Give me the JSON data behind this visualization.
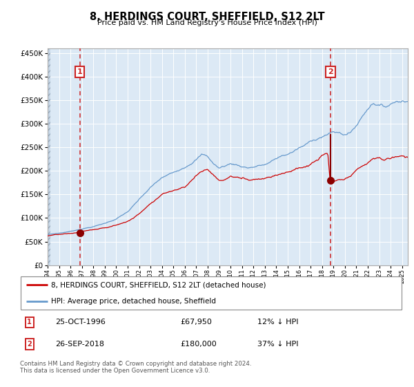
{
  "title": "8, HERDINGS COURT, SHEFFIELD, S12 2LT",
  "subtitle": "Price paid vs. HM Land Registry's House Price Index (HPI)",
  "bg_color": "#dce9f5",
  "grid_color": "#ffffff",
  "red_line_color": "#cc0000",
  "blue_line_color": "#6699cc",
  "marker_color": "#8b0000",
  "vline_color": "#cc2222",
  "ylim": [
    0,
    460000
  ],
  "yticks": [
    0,
    50000,
    100000,
    150000,
    200000,
    250000,
    300000,
    350000,
    400000,
    450000
  ],
  "ytick_labels": [
    "£0",
    "£50K",
    "£100K",
    "£150K",
    "£200K",
    "£250K",
    "£300K",
    "£350K",
    "£400K",
    "£450K"
  ],
  "sale1_date_num": 1996.81,
  "sale1_price": 67950,
  "sale2_date_num": 2018.74,
  "sale2_price": 180000,
  "sale1_hpi_price": 77000,
  "sale2_hpi_price": 285000,
  "legend_line1": "8, HERDINGS COURT, SHEFFIELD, S12 2LT (detached house)",
  "legend_line2": "HPI: Average price, detached house, Sheffield",
  "table_row1": [
    "1",
    "25-OCT-1996",
    "£67,950",
    "12% ↓ HPI"
  ],
  "table_row2": [
    "2",
    "26-SEP-2018",
    "£180,000",
    "37% ↓ HPI"
  ],
  "footnote": "Contains HM Land Registry data © Crown copyright and database right 2024.\nThis data is licensed under the Open Government Licence v3.0.",
  "hpi_keypoints": [
    [
      1994.0,
      65000
    ],
    [
      1995.0,
      68000
    ],
    [
      1996.0,
      72000
    ],
    [
      1997.0,
      78000
    ],
    [
      1998.0,
      83000
    ],
    [
      1999.0,
      90000
    ],
    [
      2000.0,
      100000
    ],
    [
      2001.0,
      115000
    ],
    [
      2002.0,
      140000
    ],
    [
      2003.0,
      165000
    ],
    [
      2004.0,
      185000
    ],
    [
      2005.0,
      195000
    ],
    [
      2006.0,
      210000
    ],
    [
      2007.0,
      230000
    ],
    [
      2007.5,
      240000
    ],
    [
      2008.0,
      235000
    ],
    [
      2008.5,
      220000
    ],
    [
      2009.0,
      210000
    ],
    [
      2009.5,
      215000
    ],
    [
      2010.0,
      220000
    ],
    [
      2010.5,
      218000
    ],
    [
      2011.0,
      215000
    ],
    [
      2011.5,
      213000
    ],
    [
      2012.0,
      215000
    ],
    [
      2012.5,
      218000
    ],
    [
      2013.0,
      220000
    ],
    [
      2013.5,
      225000
    ],
    [
      2014.0,
      232000
    ],
    [
      2014.5,
      238000
    ],
    [
      2015.0,
      242000
    ],
    [
      2015.5,
      248000
    ],
    [
      2016.0,
      255000
    ],
    [
      2016.5,
      260000
    ],
    [
      2017.0,
      268000
    ],
    [
      2017.5,
      275000
    ],
    [
      2018.0,
      282000
    ],
    [
      2018.5,
      287000
    ],
    [
      2019.0,
      290000
    ],
    [
      2019.5,
      288000
    ],
    [
      2020.0,
      285000
    ],
    [
      2020.5,
      290000
    ],
    [
      2021.0,
      305000
    ],
    [
      2021.5,
      325000
    ],
    [
      2022.0,
      345000
    ],
    [
      2022.5,
      360000
    ],
    [
      2023.0,
      355000
    ],
    [
      2023.5,
      350000
    ],
    [
      2024.0,
      358000
    ],
    [
      2024.5,
      365000
    ],
    [
      2025.0,
      368000
    ]
  ],
  "red_keypoints": [
    [
      1994.0,
      62000
    ],
    [
      1995.0,
      64000
    ],
    [
      1996.0,
      65000
    ],
    [
      1996.81,
      67950
    ],
    [
      1997.0,
      70000
    ],
    [
      1998.0,
      73000
    ],
    [
      1999.0,
      76000
    ],
    [
      2000.0,
      82000
    ],
    [
      2001.0,
      90000
    ],
    [
      2002.0,
      105000
    ],
    [
      2003.0,
      130000
    ],
    [
      2004.0,
      150000
    ],
    [
      2005.0,
      160000
    ],
    [
      2006.0,
      170000
    ],
    [
      2007.0,
      195000
    ],
    [
      2007.5,
      205000
    ],
    [
      2008.0,
      210000
    ],
    [
      2008.5,
      198000
    ],
    [
      2009.0,
      185000
    ],
    [
      2009.5,
      188000
    ],
    [
      2010.0,
      195000
    ],
    [
      2010.5,
      193000
    ],
    [
      2011.0,
      190000
    ],
    [
      2011.5,
      188000
    ],
    [
      2012.0,
      190000
    ],
    [
      2012.5,
      193000
    ],
    [
      2013.0,
      195000
    ],
    [
      2013.5,
      200000
    ],
    [
      2014.0,
      205000
    ],
    [
      2014.5,
      210000
    ],
    [
      2015.0,
      215000
    ],
    [
      2015.5,
      218000
    ],
    [
      2016.0,
      222000
    ],
    [
      2016.5,
      225000
    ],
    [
      2017.0,
      230000
    ],
    [
      2017.5,
      238000
    ],
    [
      2018.0,
      248000
    ],
    [
      2018.5,
      252000
    ],
    [
      2018.74,
      180000
    ],
    [
      2019.0,
      185000
    ],
    [
      2019.5,
      190000
    ],
    [
      2020.0,
      188000
    ],
    [
      2020.5,
      195000
    ],
    [
      2021.0,
      205000
    ],
    [
      2021.5,
      215000
    ],
    [
      2022.0,
      222000
    ],
    [
      2022.5,
      230000
    ],
    [
      2023.0,
      232000
    ],
    [
      2023.5,
      228000
    ],
    [
      2024.0,
      232000
    ],
    [
      2024.5,
      235000
    ],
    [
      2025.0,
      238000
    ]
  ]
}
